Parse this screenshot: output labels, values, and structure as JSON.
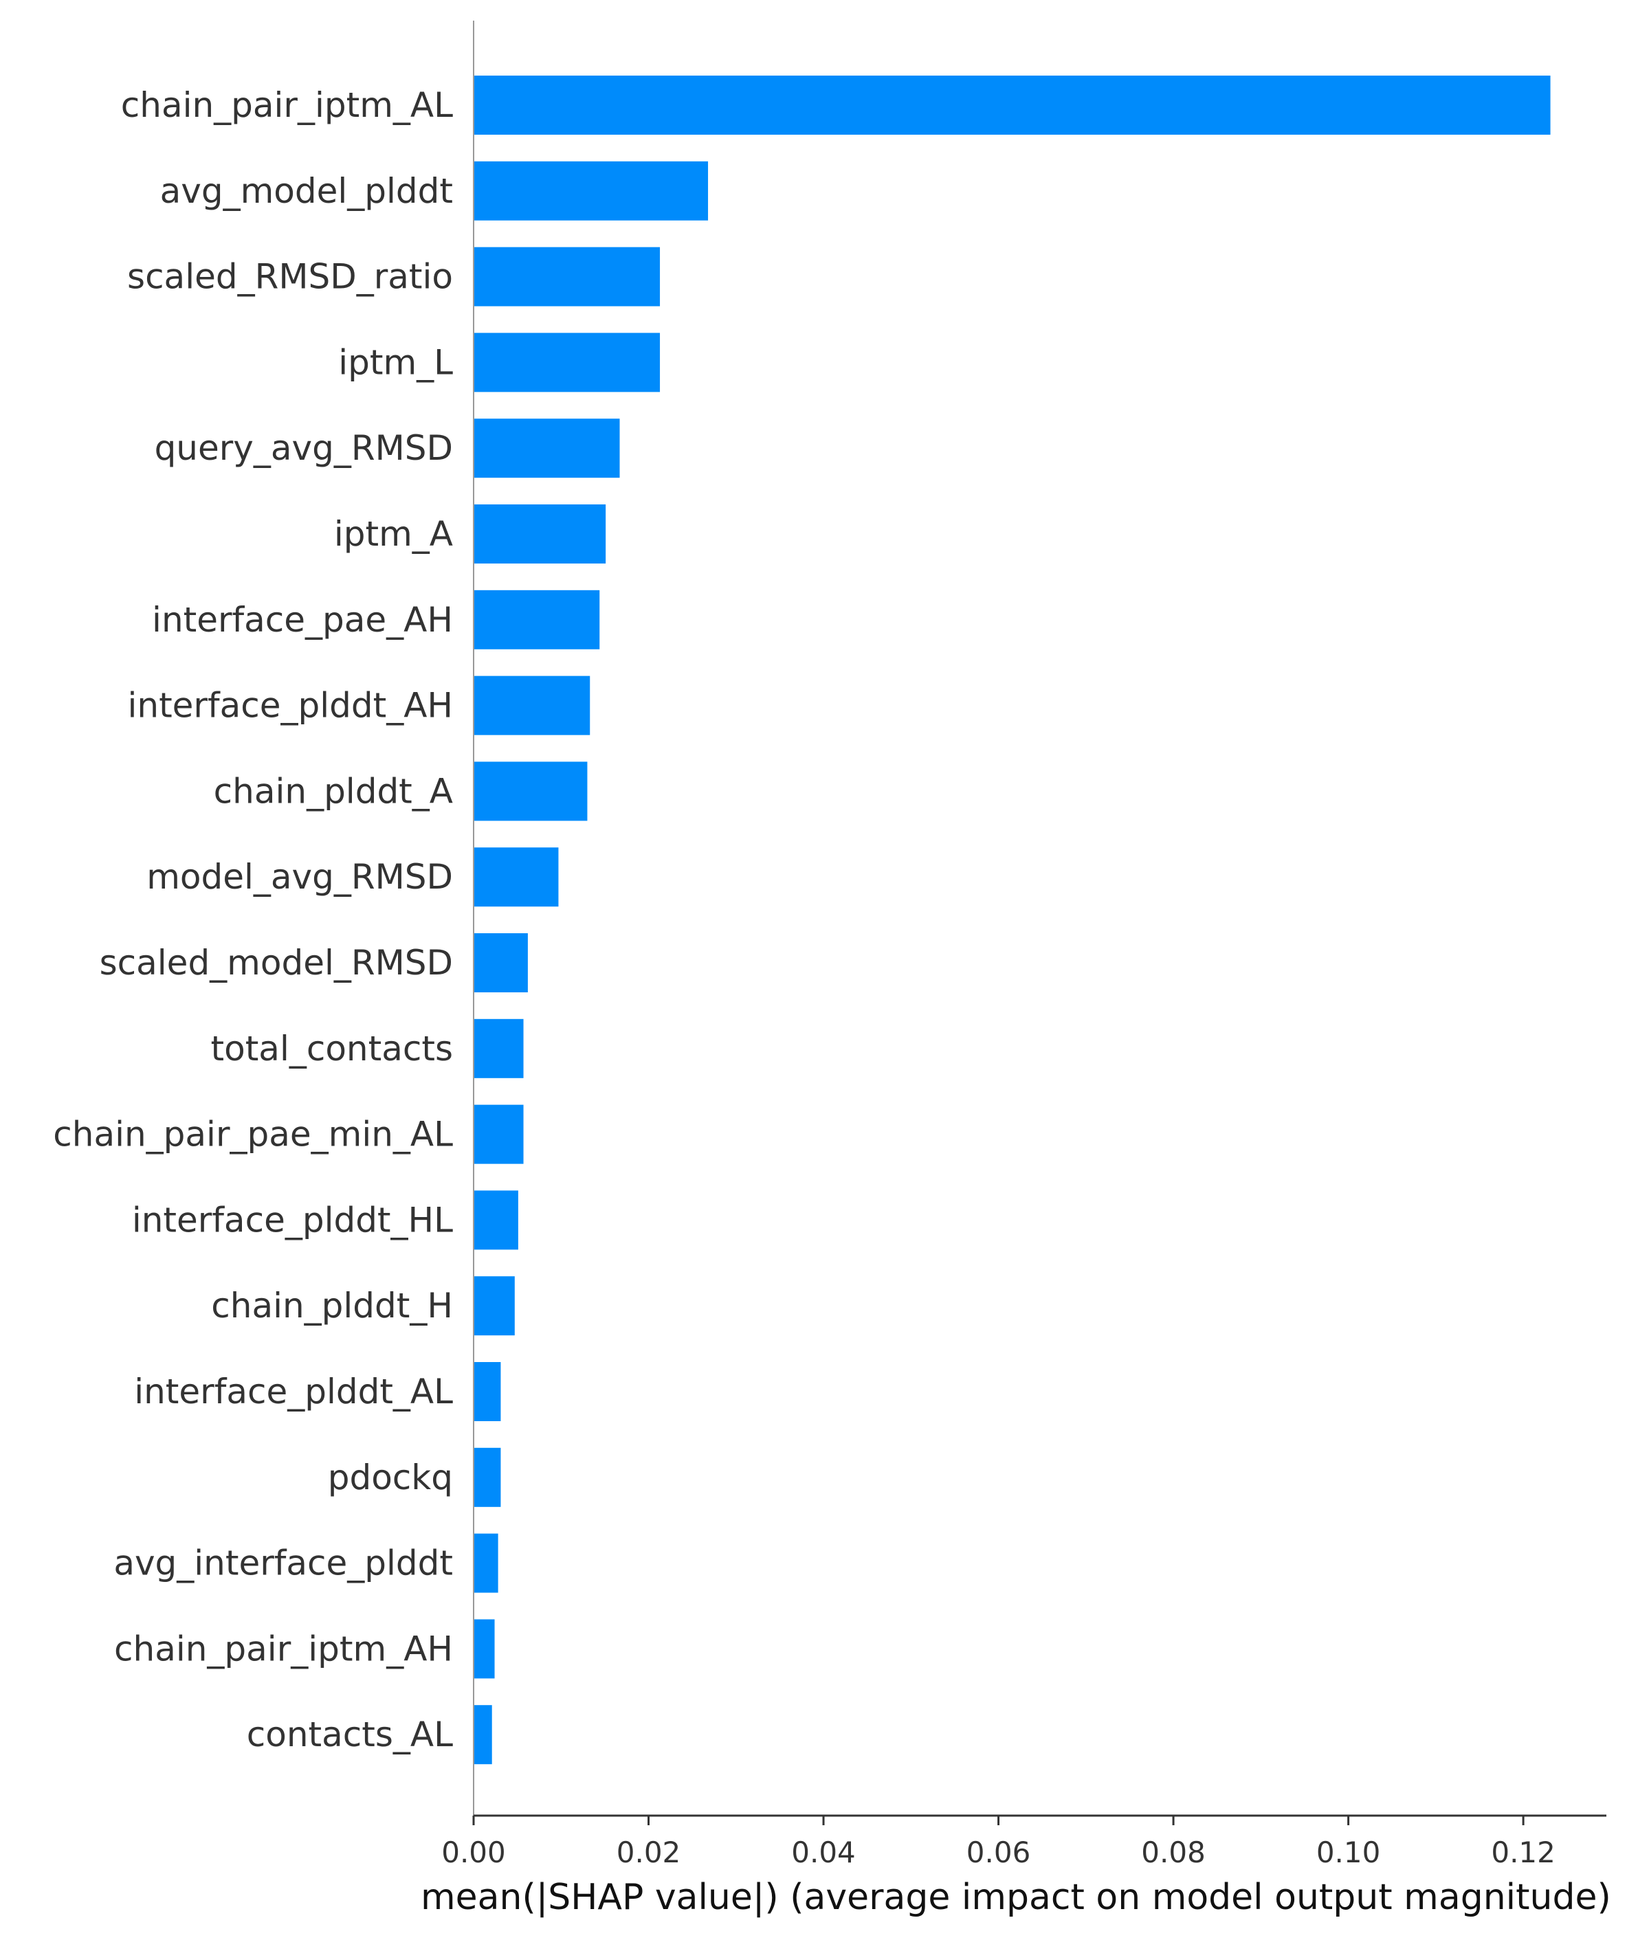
{
  "chart_data": {
    "type": "bar",
    "orientation": "horizontal",
    "categories": [
      "chain_pair_iptm_AL",
      "avg_model_plddt",
      "scaled_RMSD_ratio",
      "iptm_L",
      "query_avg_RMSD",
      "iptm_A",
      "interface_pae_AH",
      "interface_plddt_AH",
      "chain_plddt_A",
      "model_avg_RMSD",
      "scaled_model_RMSD",
      "total_contacts",
      "chain_pair_pae_min_AL",
      "interface_plddt_HL",
      "chain_plddt_H",
      "interface_plddt_AL",
      "pdockq",
      "avg_interface_plddt",
      "chain_pair_iptm_AH",
      "contacts_AL"
    ],
    "values": [
      0.1231,
      0.0268,
      0.0213,
      0.0213,
      0.0167,
      0.0151,
      0.0144,
      0.0133,
      0.013,
      0.0097,
      0.0062,
      0.0057,
      0.0057,
      0.0051,
      0.0047,
      0.0031,
      0.0031,
      0.0028,
      0.0024,
      0.0021
    ],
    "xlabel": "mean(|SHAP value|) (average impact on model output magnitude)",
    "ylabel": "",
    "title": "",
    "xlim": [
      0,
      0.1295
    ],
    "xticks": [
      0.0,
      0.02,
      0.04,
      0.06,
      0.08,
      0.1,
      0.12
    ],
    "xtick_labels": [
      "0.00",
      "0.02",
      "0.04",
      "0.06",
      "0.08",
      "0.10",
      "0.12"
    ],
    "bar_color": "#008bfb",
    "axis_color": "#333333",
    "grid": false
  }
}
